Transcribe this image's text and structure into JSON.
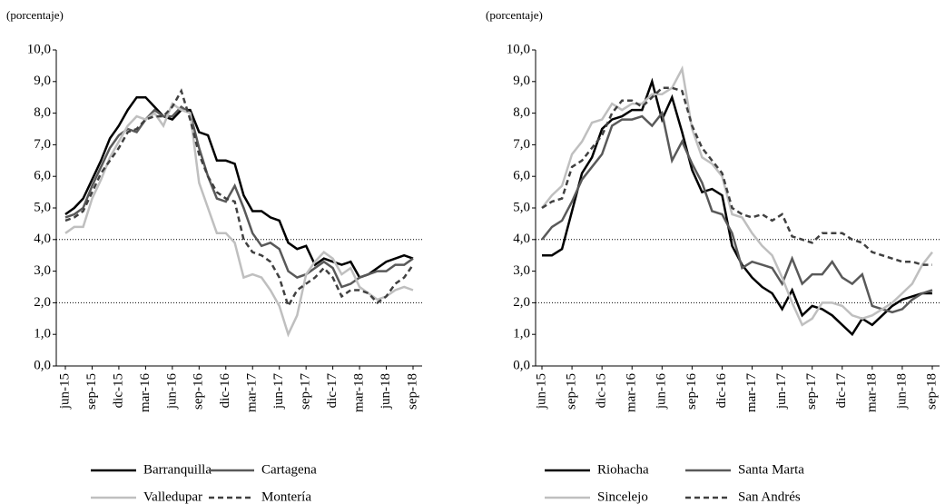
{
  "chart_data": [
    {
      "type": "line",
      "ylabel": "(porcentaje)",
      "categories": [
        "jun-15",
        null,
        null,
        "sep-15",
        null,
        null,
        "dic-15",
        null,
        null,
        "mar-16",
        null,
        null,
        "jun-16",
        null,
        null,
        "sep-16",
        null,
        null,
        "dic-16",
        null,
        null,
        "mar-17",
        null,
        null,
        "jun-17",
        null,
        null,
        "sep-17",
        null,
        null,
        "dic-17",
        null,
        null,
        "mar-18",
        null,
        null,
        "jun-18",
        null,
        null,
        "sep-18"
      ],
      "ylim": [
        0,
        10
      ],
      "yticks": [
        {
          "value": 0,
          "label": "0,0"
        },
        {
          "value": 1,
          "label": "1,0"
        },
        {
          "value": 2,
          "label": "2,0"
        },
        {
          "value": 3,
          "label": "3,0"
        },
        {
          "value": 4,
          "label": "4,0"
        },
        {
          "value": 5,
          "label": "5,0"
        },
        {
          "value": 6,
          "label": "6,0"
        },
        {
          "value": 7,
          "label": "7,0"
        },
        {
          "value": 8,
          "label": "8,0"
        },
        {
          "value": 9,
          "label": "9,0"
        },
        {
          "value": 10,
          "label": "10,0"
        }
      ],
      "reference_lines": [
        4,
        2
      ],
      "series": [
        {
          "name": "Barranquilla",
          "color": "#000000",
          "style": "solid",
          "values": [
            4.8,
            5.0,
            5.3,
            5.9,
            6.5,
            7.2,
            7.6,
            8.1,
            8.5,
            8.5,
            8.2,
            7.9,
            7.8,
            8.1,
            8.1,
            7.4,
            7.3,
            6.5,
            6.5,
            6.4,
            5.4,
            4.9,
            4.9,
            4.7,
            4.6,
            3.9,
            3.7,
            3.8,
            3.2,
            3.4,
            3.3,
            3.2,
            3.3,
            2.8,
            2.9,
            3.1,
            3.3,
            3.4,
            3.5,
            3.4
          ]
        },
        {
          "name": "Cartagena",
          "color": "#595959",
          "style": "solid",
          "values": [
            4.7,
            4.8,
            5.0,
            5.7,
            6.3,
            6.9,
            7.3,
            7.5,
            7.4,
            7.8,
            8.1,
            7.9,
            7.9,
            8.2,
            8.0,
            6.9,
            6.0,
            5.3,
            5.2,
            5.7,
            5.0,
            4.2,
            3.8,
            3.9,
            3.7,
            3.0,
            2.8,
            2.9,
            3.1,
            3.3,
            3.1,
            2.5,
            2.6,
            2.8,
            2.9,
            3.0,
            3.0,
            3.2,
            3.2,
            3.4
          ]
        },
        {
          "name": "Valledupar",
          "color": "#bfbfbf",
          "style": "solid",
          "values": [
            4.2,
            4.4,
            4.4,
            5.3,
            5.9,
            6.6,
            7.1,
            7.6,
            7.9,
            7.8,
            8.0,
            7.6,
            8.3,
            8.1,
            8.0,
            5.8,
            5.0,
            4.2,
            4.2,
            3.9,
            2.8,
            2.9,
            2.8,
            2.4,
            1.9,
            1.0,
            1.6,
            2.9,
            3.3,
            3.6,
            3.4,
            2.9,
            3.1,
            2.5,
            2.3,
            2.1,
            2.2,
            2.4,
            2.5,
            2.4
          ]
        },
        {
          "name": "Montería",
          "color": "#404040",
          "style": "dashed",
          "values": [
            4.6,
            4.7,
            4.9,
            5.5,
            6.1,
            6.5,
            6.9,
            7.4,
            7.5,
            7.8,
            7.9,
            7.9,
            8.2,
            8.7,
            7.8,
            6.7,
            6.0,
            5.5,
            5.3,
            5.2,
            4.0,
            3.6,
            3.5,
            3.3,
            2.8,
            1.9,
            2.4,
            2.6,
            2.8,
            3.1,
            2.8,
            2.2,
            2.4,
            2.4,
            2.3,
            2.0,
            2.2,
            2.6,
            2.8,
            3.2
          ]
        }
      ]
    },
    {
      "type": "line",
      "ylabel": "(porcentaje)",
      "categories": [
        "jun-15",
        null,
        null,
        "sep-15",
        null,
        null,
        "dic-15",
        null,
        null,
        "mar-16",
        null,
        null,
        "jun-16",
        null,
        null,
        "sep-16",
        null,
        null,
        "dic-16",
        null,
        null,
        "mar-17",
        null,
        null,
        "jun-17",
        null,
        null,
        "sep-17",
        null,
        null,
        "dic-17",
        null,
        null,
        "mar-18",
        null,
        null,
        "jun-18",
        null,
        null,
        "sep-18"
      ],
      "ylim": [
        0,
        10
      ],
      "yticks": [
        {
          "value": 0,
          "label": "0,0"
        },
        {
          "value": 1,
          "label": "1,0"
        },
        {
          "value": 2,
          "label": "2,0"
        },
        {
          "value": 3,
          "label": "3,0"
        },
        {
          "value": 4,
          "label": "4,0"
        },
        {
          "value": 5,
          "label": "5,0"
        },
        {
          "value": 6,
          "label": "6,0"
        },
        {
          "value": 7,
          "label": "7,0"
        },
        {
          "value": 8,
          "label": "8,0"
        },
        {
          "value": 9,
          "label": "9,0"
        },
        {
          "value": 10,
          "label": "10,0"
        }
      ],
      "reference_lines": [
        4,
        2
      ],
      "series": [
        {
          "name": "Riohacha",
          "color": "#000000",
          "style": "solid",
          "values": [
            3.5,
            3.5,
            3.7,
            4.9,
            6.1,
            6.6,
            7.5,
            7.8,
            7.9,
            8.1,
            8.1,
            9.0,
            7.8,
            8.5,
            7.4,
            6.2,
            5.5,
            5.6,
            5.4,
            3.8,
            3.2,
            2.8,
            2.5,
            2.3,
            1.8,
            2.4,
            1.6,
            1.9,
            1.8,
            1.6,
            1.3,
            1.0,
            1.5,
            1.3,
            1.6,
            1.9,
            2.1,
            2.2,
            2.3,
            2.3
          ]
        },
        {
          "name": "Santa Marta",
          "color": "#595959",
          "style": "solid",
          "values": [
            4.0,
            4.4,
            4.6,
            5.2,
            5.9,
            6.3,
            6.7,
            7.6,
            7.8,
            7.8,
            7.9,
            7.6,
            8.0,
            6.5,
            7.1,
            6.4,
            5.8,
            4.9,
            4.8,
            4.2,
            3.1,
            3.3,
            3.2,
            3.1,
            2.6,
            3.4,
            2.6,
            2.9,
            2.9,
            3.3,
            2.8,
            2.6,
            2.9,
            1.9,
            1.8,
            1.7,
            1.8,
            2.1,
            2.3,
            2.4
          ]
        },
        {
          "name": "Sincelejo",
          "color": "#bfbfbf",
          "style": "solid",
          "values": [
            5.0,
            5.4,
            5.7,
            6.7,
            7.1,
            7.7,
            7.8,
            8.3,
            8.1,
            8.3,
            8.3,
            8.6,
            8.6,
            8.8,
            9.4,
            7.5,
            6.6,
            6.4,
            6.0,
            4.8,
            4.7,
            4.2,
            3.8,
            3.5,
            2.8,
            2.0,
            1.3,
            1.5,
            2.0,
            2.0,
            1.9,
            1.6,
            1.5,
            1.6,
            1.8,
            2.0,
            2.3,
            2.6,
            3.2,
            3.6
          ]
        },
        {
          "name": "San Andrés",
          "color": "#404040",
          "style": "dashed",
          "values": [
            5.0,
            5.2,
            5.3,
            6.3,
            6.5,
            6.9,
            7.3,
            8.0,
            8.4,
            8.4,
            8.2,
            8.5,
            8.8,
            8.8,
            8.7,
            7.6,
            6.9,
            6.5,
            6.1,
            5.0,
            4.8,
            4.7,
            4.8,
            4.6,
            4.8,
            4.1,
            4.0,
            3.9,
            4.2,
            4.2,
            4.2,
            4.0,
            3.9,
            3.6,
            3.5,
            3.4,
            3.3,
            3.3,
            3.2,
            3.2
          ]
        }
      ]
    }
  ]
}
